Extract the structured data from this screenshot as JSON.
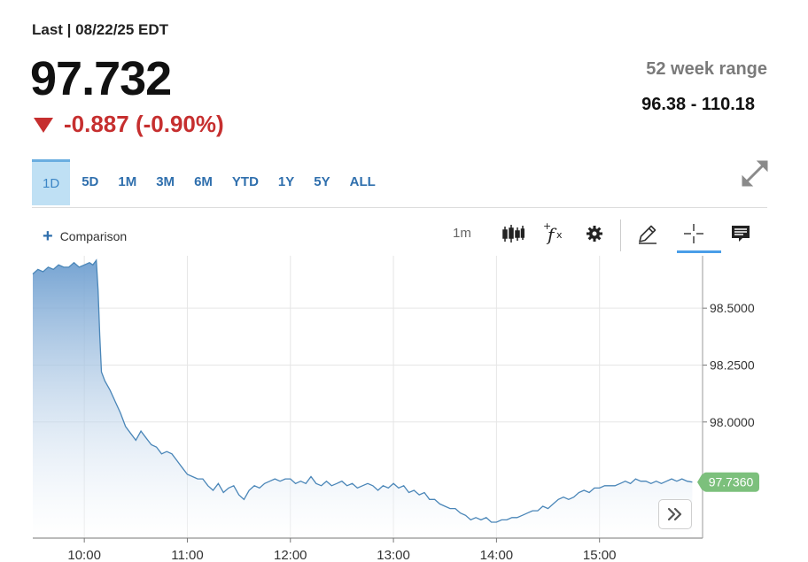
{
  "header": {
    "last_label": "Last | 08/22/25 EDT",
    "price": "97.732",
    "change": "-0.887 (-0.90%)",
    "range_label": "52 week range",
    "range_value": "96.38 - 110.18",
    "down_color": "#c62f2f"
  },
  "tabs": [
    {
      "label": "1D",
      "active": true
    },
    {
      "label": "5D"
    },
    {
      "label": "1M"
    },
    {
      "label": "3M"
    },
    {
      "label": "6M"
    },
    {
      "label": "YTD"
    },
    {
      "label": "1Y"
    },
    {
      "label": "5Y"
    },
    {
      "label": "ALL"
    }
  ],
  "toolbar": {
    "comparison_label": "Comparison",
    "interval_label": "1m",
    "icons": [
      "candlestick-icon",
      "function-icon",
      "gear-icon",
      "pencil-icon",
      "crosshair-icon",
      "comment-icon"
    ]
  },
  "chart_data": {
    "type": "area",
    "line_color": "#4a86b8",
    "fill_top_color": "#6f9fd0",
    "last_value_badge": "97.7360",
    "badge_color": "#7cc07c",
    "y_ticks": [
      "98.5000",
      "98.2500",
      "98.0000"
    ],
    "y_tick_values": [
      98.5,
      98.25,
      98.0
    ],
    "x_ticks": [
      "10:00",
      "11:00",
      "12:00",
      "13:00",
      "14:00",
      "15:00"
    ],
    "x_tick_minutes": [
      600,
      660,
      720,
      780,
      840,
      900
    ],
    "xlim": [
      570,
      960
    ],
    "ylim": [
      97.49,
      98.73
    ],
    "grid": true,
    "series": [
      {
        "x": [
          570,
          573,
          576,
          579,
          582,
          585,
          588,
          591,
          594,
          597,
          600,
          603,
          605,
          607,
          608,
          609,
          610,
          612,
          615,
          618,
          621,
          624,
          627,
          630,
          633,
          636,
          639,
          642,
          645,
          648,
          651,
          654,
          657,
          660,
          663,
          666,
          669,
          672,
          675,
          678,
          681,
          684,
          687,
          690,
          693,
          696,
          699,
          702,
          705,
          708,
          711,
          714,
          717,
          720,
          723,
          726,
          729,
          732,
          735,
          738,
          741,
          744,
          747,
          750,
          753,
          756,
          759,
          762,
          765,
          768,
          771,
          774,
          777,
          780,
          783,
          786,
          789,
          792,
          795,
          798,
          801,
          804,
          807,
          810,
          813,
          816,
          819,
          822,
          825,
          828,
          831,
          834,
          837,
          840,
          843,
          846,
          849,
          852,
          855,
          858,
          861,
          864,
          867,
          870,
          873,
          876,
          879,
          882,
          885,
          888,
          891,
          894,
          897,
          900,
          903,
          906,
          909,
          912,
          915,
          918,
          921,
          924,
          927,
          930,
          933,
          936,
          939,
          942,
          945,
          948,
          951,
          954
        ],
        "y": [
          98.65,
          98.67,
          98.66,
          98.68,
          98.67,
          98.69,
          98.68,
          98.68,
          98.7,
          98.68,
          98.69,
          98.7,
          98.69,
          98.71,
          98.58,
          98.38,
          98.22,
          98.18,
          98.14,
          98.09,
          98.04,
          97.98,
          97.95,
          97.92,
          97.96,
          97.93,
          97.9,
          97.89,
          97.86,
          97.87,
          97.86,
          97.83,
          97.8,
          97.77,
          97.76,
          97.75,
          97.75,
          97.72,
          97.7,
          97.73,
          97.69,
          97.71,
          97.72,
          97.68,
          97.66,
          97.7,
          97.72,
          97.71,
          97.73,
          97.74,
          97.75,
          97.74,
          97.75,
          97.75,
          97.73,
          97.74,
          97.73,
          97.76,
          97.73,
          97.72,
          97.74,
          97.72,
          97.73,
          97.74,
          97.72,
          97.73,
          97.71,
          97.72,
          97.73,
          97.72,
          97.7,
          97.72,
          97.71,
          97.73,
          97.71,
          97.72,
          97.69,
          97.7,
          97.68,
          97.69,
          97.66,
          97.66,
          97.64,
          97.63,
          97.62,
          97.62,
          97.6,
          97.59,
          97.57,
          97.58,
          97.57,
          97.58,
          97.56,
          97.56,
          97.57,
          97.57,
          97.58,
          97.58,
          97.59,
          97.6,
          97.61,
          97.61,
          97.63,
          97.62,
          97.64,
          97.66,
          97.67,
          97.66,
          97.67,
          97.69,
          97.7,
          97.69,
          97.71,
          97.71,
          97.72,
          97.72,
          97.72,
          97.73,
          97.74,
          97.73,
          97.75,
          97.74,
          97.74,
          97.73,
          97.74,
          97.73,
          97.74,
          97.75,
          97.74,
          97.75,
          97.74,
          97.736
        ]
      }
    ]
  }
}
